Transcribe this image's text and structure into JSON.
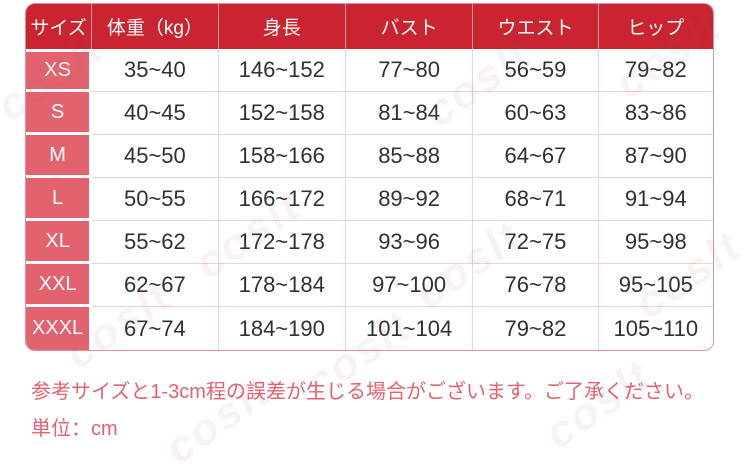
{
  "table": {
    "headers": [
      "サイズ",
      "体重（kg）",
      "身長",
      "バスト",
      "ウエスト",
      "ヒップ"
    ],
    "rows": [
      {
        "size": "XS",
        "weight": "35~40",
        "height": "146~152",
        "bust": "77~80",
        "waist": "56~59",
        "hip": "79~82"
      },
      {
        "size": "S",
        "weight": "40~45",
        "height": "152~158",
        "bust": "81~84",
        "waist": "60~63",
        "hip": "83~86"
      },
      {
        "size": "M",
        "weight": "45~50",
        "height": "158~166",
        "bust": "85~88",
        "waist": "64~67",
        "hip": "87~90"
      },
      {
        "size": "L",
        "weight": "50~55",
        "height": "166~172",
        "bust": "89~92",
        "waist": "68~71",
        "hip": "91~94"
      },
      {
        "size": "XL",
        "weight": "55~62",
        "height": "172~178",
        "bust": "93~96",
        "waist": "72~75",
        "hip": "95~98"
      },
      {
        "size": "XXL",
        "weight": "62~67",
        "height": "178~184",
        "bust": "97~100",
        "waist": "76~78",
        "hip": "95~105"
      },
      {
        "size": "XXXL",
        "weight": "67~74",
        "height": "184~190",
        "bust": "101~104",
        "waist": "79~82",
        "hip": "105~110"
      }
    ]
  },
  "notes": {
    "line1": "参考サイズと1-3cm程の誤差が生じる場合がございます。ご了承ください。",
    "line2": "単位：cm"
  },
  "watermark": {
    "text": "coslt"
  },
  "colors": {
    "header_bg": "#c9242f",
    "size_col_bg": "#e2626d",
    "note_text": "#e4626e",
    "cell_border": "#eed3d5",
    "outer_border": "#db949b",
    "cell_text": "#303030"
  }
}
